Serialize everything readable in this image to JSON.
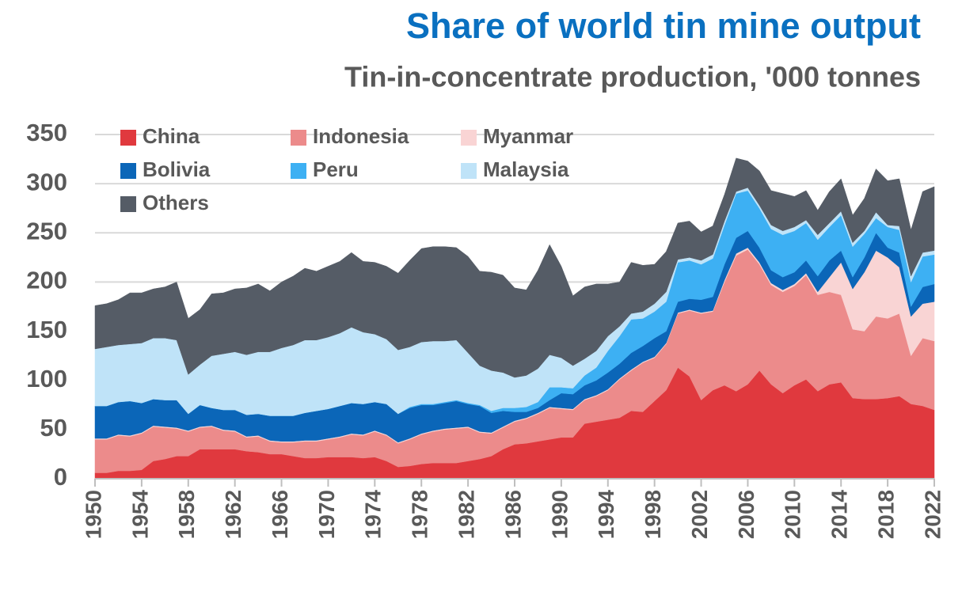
{
  "chart_data": {
    "type": "stacked_area",
    "title": "Share of world tin mine output",
    "subtitle": "Tin-in-concentrate production, '000 tonnes",
    "x": [
      1950,
      1951,
      1952,
      1953,
      1954,
      1955,
      1956,
      1957,
      1958,
      1959,
      1960,
      1961,
      1962,
      1963,
      1964,
      1965,
      1966,
      1967,
      1968,
      1969,
      1970,
      1971,
      1972,
      1973,
      1974,
      1975,
      1976,
      1977,
      1978,
      1979,
      1980,
      1981,
      1982,
      1983,
      1984,
      1985,
      1986,
      1987,
      1988,
      1989,
      1990,
      1991,
      1992,
      1993,
      1994,
      1995,
      1996,
      1997,
      1998,
      1999,
      2000,
      2001,
      2002,
      2003,
      2004,
      2005,
      2006,
      2007,
      2008,
      2009,
      2010,
      2011,
      2012,
      2013,
      2014,
      2015,
      2016,
      2017,
      2018,
      2019,
      2020,
      2021,
      2022
    ],
    "xlim": [
      1950,
      2022
    ],
    "xticks": [
      1950,
      1954,
      1958,
      1962,
      1966,
      1970,
      1974,
      1978,
      1982,
      1986,
      1990,
      1994,
      1998,
      2002,
      2006,
      2010,
      2014,
      2018,
      2022
    ],
    "ylim": [
      0,
      350
    ],
    "yticks": [
      0,
      50,
      100,
      150,
      200,
      250,
      300,
      350
    ],
    "grid": true,
    "legend": "upper left",
    "series": [
      {
        "name": "China",
        "color": "#e0393e",
        "values": [
          6,
          6,
          8,
          8,
          9,
          18,
          20,
          23,
          23,
          30,
          30,
          30,
          30,
          28,
          27,
          25,
          25,
          23,
          21,
          21,
          22,
          22,
          22,
          21,
          22,
          18,
          12,
          13,
          15,
          16,
          16,
          16,
          18,
          20,
          23,
          30,
          35,
          36,
          38,
          40,
          42,
          42,
          56,
          58,
          60,
          62,
          69,
          68,
          79,
          90,
          113,
          104,
          80,
          90,
          95,
          89,
          96,
          110,
          96,
          87,
          95,
          101,
          89,
          96,
          98,
          82,
          81,
          81,
          82,
          84,
          76,
          74,
          70
        ]
      },
      {
        "name": "Indonesia",
        "color": "#ec8b8b",
        "values": [
          34,
          34,
          36,
          35,
          37,
          35,
          32,
          28,
          25,
          22,
          23,
          19,
          18,
          14,
          16,
          13,
          12,
          14,
          17,
          17,
          18,
          20,
          23,
          23,
          26,
          26,
          24,
          27,
          30,
          32,
          34,
          35,
          34,
          27,
          23,
          22,
          23,
          25,
          28,
          32,
          29,
          28,
          24,
          26,
          30,
          39,
          41,
          50,
          44,
          47,
          55,
          67,
          88,
          80,
          105,
          138,
          137,
          108,
          101,
          103,
          101,
          106,
          98,
          94,
          89,
          70,
          69,
          84,
          81,
          84,
          49,
          69,
          70
        ]
      },
      {
        "name": "Myanmar",
        "color": "#f9d4d4",
        "values": [
          1,
          1,
          1,
          1,
          1,
          1,
          1,
          1,
          1,
          1,
          1,
          1,
          1,
          1,
          1,
          1,
          1,
          1,
          1,
          1,
          1,
          1,
          1,
          1,
          1,
          1,
          1,
          1,
          1,
          1,
          1,
          1,
          1,
          1,
          1,
          1,
          1,
          1,
          1,
          1,
          1,
          1,
          1,
          1,
          1,
          1,
          1,
          1,
          1,
          1,
          1,
          1,
          1,
          1,
          2,
          2,
          2,
          2,
          2,
          2,
          2,
          2,
          3,
          15,
          33,
          41,
          60,
          67,
          62,
          47,
          40,
          35,
          40
        ]
      },
      {
        "name": "Bolivia",
        "color": "#0b66b8",
        "values": [
          33,
          33,
          33,
          35,
          30,
          27,
          27,
          28,
          17,
          22,
          18,
          20,
          21,
          22,
          22,
          25,
          26,
          26,
          28,
          30,
          30,
          31,
          31,
          31,
          29,
          31,
          29,
          31,
          29,
          26,
          26,
          27,
          23,
          26,
          20,
          16,
          9,
          6,
          5,
          7,
          15,
          15,
          14,
          15,
          17,
          15,
          17,
          16,
          19,
          12,
          11,
          11,
          13,
          14,
          16,
          16,
          17,
          15,
          13,
          13,
          12,
          13,
          16,
          17,
          12,
          12,
          15,
          18,
          10,
          15,
          10,
          17,
          18
        ]
      },
      {
        "name": "Peru",
        "color": "#3db0f3",
        "values": [
          0,
          0,
          0,
          0,
          0,
          0,
          0,
          0,
          0,
          0,
          0,
          0,
          0,
          0,
          0,
          0,
          0,
          0,
          0,
          0,
          0,
          0,
          0,
          0,
          0,
          0,
          0,
          1,
          1,
          1,
          1,
          1,
          1,
          1,
          2,
          3,
          4,
          5,
          6,
          13,
          6,
          6,
          10,
          13,
          22,
          28,
          34,
          28,
          27,
          30,
          40,
          39,
          36,
          39,
          40,
          45,
          41,
          40,
          42,
          43,
          42,
          38,
          37,
          34,
          36,
          31,
          24,
          15,
          21,
          23,
          25,
          31,
          30
        ]
      },
      {
        "name": "Malaysia",
        "color": "#bfe3f8",
        "values": [
          58,
          60,
          58,
          58,
          61,
          62,
          63,
          61,
          40,
          41,
          53,
          57,
          59,
          61,
          63,
          65,
          69,
          72,
          74,
          72,
          73,
          74,
          77,
          73,
          69,
          66,
          65,
          61,
          63,
          64,
          62,
          61,
          51,
          40,
          41,
          36,
          31,
          32,
          34,
          33,
          30,
          23,
          17,
          17,
          15,
          10,
          6,
          7,
          8,
          10,
          3,
          3,
          4,
          4,
          4,
          2,
          3,
          3,
          4,
          4,
          4,
          3,
          5,
          4,
          4,
          4,
          3,
          6,
          2,
          4,
          6,
          4,
          4
        ]
      },
      {
        "name": "Others",
        "color": "#555c66",
        "values": [
          44,
          44,
          46,
          52,
          51,
          50,
          52,
          59,
          57,
          56,
          63,
          62,
          64,
          68,
          69,
          62,
          67,
          70,
          73,
          70,
          72,
          73,
          76,
          72,
          73,
          74,
          78,
          88,
          95,
          96,
          96,
          94,
          98,
          96,
          100,
          99,
          91,
          87,
          100,
          112,
          93,
          71,
          73,
          68,
          53,
          45,
          52,
          47,
          40,
          41,
          37,
          37,
          29,
          29,
          27,
          34,
          27,
          35,
          35,
          38,
          31,
          30,
          25,
          32,
          33,
          28,
          33,
          44,
          45,
          48,
          47,
          62,
          65
        ]
      }
    ]
  }
}
